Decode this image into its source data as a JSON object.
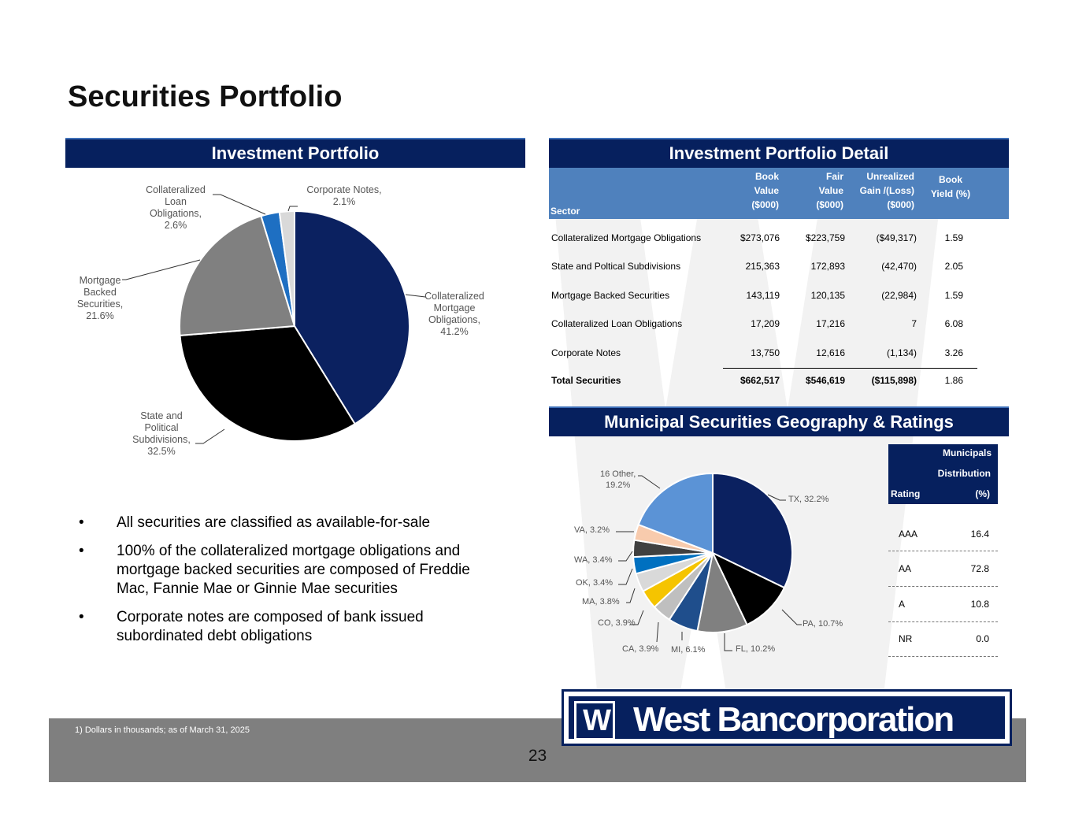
{
  "page": {
    "title": "Securities Portfolio",
    "page_number": "23",
    "footnote": "1)  Dollars in thousands; as of March 31, 2025",
    "brand_color": "#06205e"
  },
  "investment_portfolio": {
    "header": "Investment Portfolio",
    "slices": [
      {
        "label": "Collateralized Mortgage Obligations, 41.2%",
        "value": 41.2,
        "color": "#0b2160"
      },
      {
        "label": "State and Political Subdivisions, 32.5%",
        "value": 32.5,
        "color": "#000000"
      },
      {
        "label": "Mortgage Backed Securities, 21.6%",
        "value": 21.6,
        "color": "#808080"
      },
      {
        "label": "Collateralized Loan Obligations, 2.6%",
        "value": 2.6,
        "color": "#1e6fc2"
      },
      {
        "label": "Corporate Notes, 2.1%",
        "value": 2.1,
        "color": "#d9d9d9"
      }
    ],
    "label_lines": {
      "cmo": [
        "Collateralized",
        "Mortgage",
        "Obligations,",
        "41.2%"
      ],
      "spd": [
        "State and",
        "Political",
        "Subdivisions,",
        "32.5%"
      ],
      "mbs": [
        "Mortgage",
        "Backed",
        "Securities,",
        "21.6%"
      ],
      "clo": [
        "Collateralized",
        "Loan",
        "Obligations,",
        "2.6%"
      ],
      "corp": [
        "Corporate Notes,",
        "2.1%"
      ]
    }
  },
  "bullets": [
    "All securities are classified as available-for-sale",
    "100% of the collateralized mortgage obligations and mortgage backed securities are composed of Freddie Mac, Fannie Mae or Ginnie Mae securities",
    "Corporate notes are composed of bank issued subordinated debt obligations"
  ],
  "bullet_glyph": "•",
  "detail": {
    "header": "Investment Portfolio Detail",
    "columns": {
      "sector": "Sector",
      "book": [
        "Book",
        "Value",
        "($000)"
      ],
      "fair": [
        "Fair",
        "Value",
        "($000)"
      ],
      "unreal": [
        "Unrealized",
        "Gain  /(Loss)",
        "($000)"
      ],
      "yield": [
        "Book",
        "Yield (%)"
      ]
    },
    "rows": [
      {
        "sector": "Collateralized Mortgage Obligations",
        "book": "$273,076",
        "fair": "$223,759",
        "unreal": "($49,317)",
        "yield": "1.59"
      },
      {
        "sector": "State and Poltical Subdivisions",
        "book": "215,363",
        "fair": "172,893",
        "unreal": "(42,470)",
        "yield": "2.05"
      },
      {
        "sector": "Mortgage Backed Securities",
        "book": "143,119",
        "fair": "120,135",
        "unreal": "(22,984)",
        "yield": "1.59"
      },
      {
        "sector": "Collateralized Loan Obligations",
        "book": "17,209",
        "fair": "17,216",
        "unreal": "7",
        "yield": "6.08"
      },
      {
        "sector": "Corporate Notes",
        "book": "13,750",
        "fair": "12,616",
        "unreal": "(1,134)",
        "yield": "3.26"
      }
    ],
    "total": {
      "sector": "Total  Securities",
      "book": "$662,517",
      "fair": "$546,619",
      "unreal": "($115,898)",
      "yield": "1.86"
    }
  },
  "municipal": {
    "header": "Municipal Securities Geography & Ratings",
    "slices": [
      {
        "label": "TX, 32.2%",
        "value": 32.2,
        "color": "#0b2160"
      },
      {
        "label": "PA, 10.7%",
        "value": 10.7,
        "color": "#000000"
      },
      {
        "label": "FL, 10.2%",
        "value": 10.2,
        "color": "#808080"
      },
      {
        "label": "MI, 6.1%",
        "value": 6.1,
        "color": "#1f4e8c"
      },
      {
        "label": "CA, 3.9%",
        "value": 3.9,
        "color": "#bfbfbf"
      },
      {
        "label": "CO, 3.9%",
        "value": 3.9,
        "color": "#f5c400"
      },
      {
        "label": "MA, 3.8%",
        "value": 3.8,
        "color": "#d9d9d9"
      },
      {
        "label": "OK, 3.4%",
        "value": 3.4,
        "color": "#0070c0"
      },
      {
        "label": "WA, 3.4%",
        "value": 3.4,
        "color": "#404040"
      },
      {
        "label": "VA, 3.2%",
        "value": 3.2,
        "color": "#f8cbad"
      },
      {
        "label": "16 Other, 19.2%",
        "value": 19.2,
        "color": "#5b93d6"
      }
    ],
    "other_lines": [
      "16 Other,",
      "19.2%"
    ],
    "ratings": {
      "head": {
        "municipals": "Municipals",
        "distribution": "Distribution",
        "rating": "Rating",
        "pct": "(%)"
      },
      "rows": [
        {
          "rating": "AAA",
          "value": "16.4"
        },
        {
          "rating": "AA",
          "value": "72.8"
        },
        {
          "rating": "A",
          "value": "10.8"
        },
        {
          "rating": "NR",
          "value": "0.0"
        }
      ]
    }
  },
  "logo": {
    "mark": "W",
    "name": "West Bancorporation"
  }
}
